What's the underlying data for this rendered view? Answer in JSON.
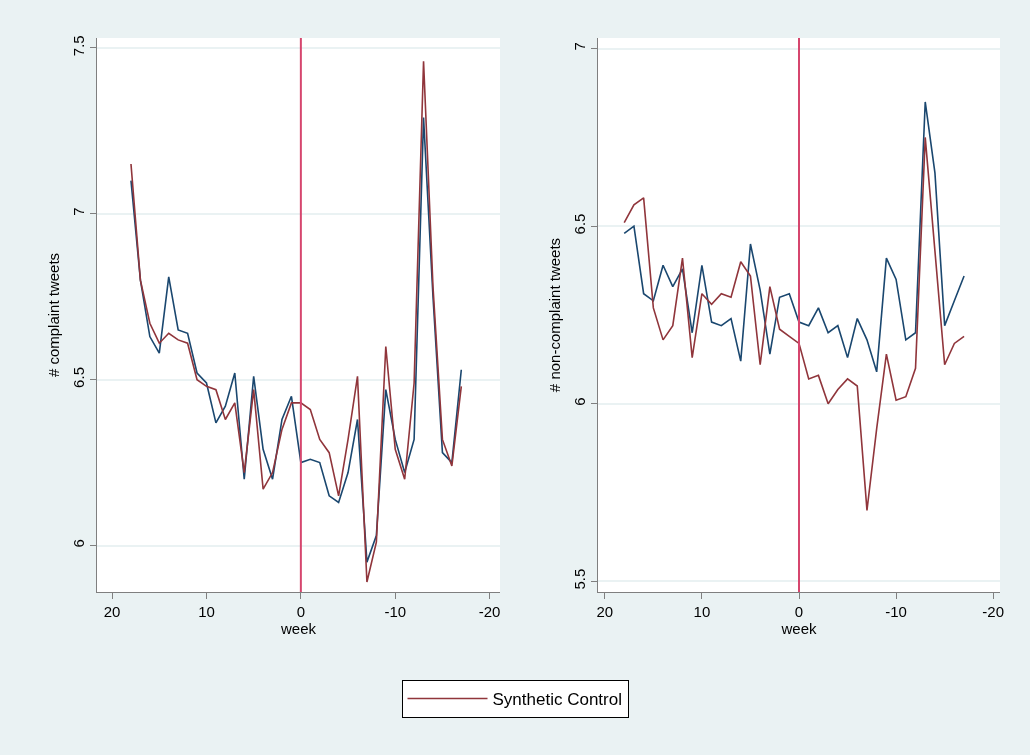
{
  "chart_data": [
    {
      "type": "line",
      "xlabel": "week",
      "ylabel": "# complaint tweets",
      "x": [
        18,
        17,
        16,
        15,
        14,
        13,
        12,
        11,
        10,
        9,
        8,
        7,
        6,
        5,
        4,
        3,
        2,
        1,
        0,
        -1,
        -2,
        -3,
        -4,
        -5,
        -6,
        -7,
        -8,
        -9,
        -10,
        -11,
        -12,
        -13,
        -14,
        -15,
        -16,
        -17
      ],
      "series": [
        {
          "color": "#1a476f",
          "values": [
            7.1,
            6.8,
            6.63,
            6.58,
            6.81,
            6.65,
            6.64,
            6.52,
            6.49,
            6.37,
            6.42,
            6.52,
            6.2,
            6.51,
            6.29,
            6.2,
            6.38,
            6.45,
            6.25,
            6.26,
            6.25,
            6.15,
            6.13,
            6.22,
            6.38,
            5.95,
            6.03,
            6.47,
            6.32,
            6.22,
            6.32,
            7.29,
            6.75,
            6.28,
            6.25,
            6.53
          ]
        },
        {
          "name": "Synthetic Control",
          "color": "#90353b",
          "values": [
            7.15,
            6.8,
            6.67,
            6.61,
            6.64,
            6.62,
            6.61,
            6.5,
            6.48,
            6.47,
            6.38,
            6.43,
            6.22,
            6.47,
            6.17,
            6.22,
            6.35,
            6.43,
            6.43,
            6.41,
            6.32,
            6.28,
            6.15,
            6.32,
            6.51,
            5.89,
            6.01,
            6.6,
            6.29,
            6.2,
            6.49,
            7.46,
            6.78,
            6.32,
            6.24,
            6.48
          ]
        }
      ],
      "xlim": [
        21.6,
        -21.1
      ],
      "xticks": [
        20,
        10,
        0,
        -10,
        -20
      ],
      "ylim": [
        5.86,
        7.53
      ],
      "yticks": [
        6,
        6.5,
        7,
        7.5
      ],
      "ref_lines": [
        {
          "axis": "x",
          "value": 0,
          "color": "#d6466e"
        }
      ],
      "grid": "y",
      "legend": "bottom"
    },
    {
      "type": "line",
      "xlabel": "week",
      "ylabel": "# non-complaint tweets",
      "x": [
        18,
        17,
        16,
        15,
        14,
        13,
        12,
        11,
        10,
        9,
        8,
        7,
        6,
        5,
        4,
        3,
        2,
        1,
        0,
        -1,
        -2,
        -3,
        -4,
        -5,
        -6,
        -7,
        -8,
        -9,
        -10,
        -11,
        -12,
        -13,
        -14,
        -15,
        -16,
        -17
      ],
      "series": [
        {
          "color": "#1a476f",
          "values": [
            6.48,
            6.5,
            6.31,
            6.29,
            6.39,
            6.33,
            6.38,
            6.2,
            6.39,
            6.23,
            6.22,
            6.24,
            6.12,
            6.45,
            6.32,
            6.14,
            6.3,
            6.31,
            6.23,
            6.22,
            6.27,
            6.2,
            6.22,
            6.13,
            6.24,
            6.18,
            6.09,
            6.41,
            6.35,
            6.18,
            6.2,
            6.85,
            6.65,
            6.22,
            6.29,
            6.36
          ]
        },
        {
          "color": "#90353b",
          "values": [
            6.51,
            6.56,
            6.58,
            6.27,
            6.18,
            6.22,
            6.41,
            6.13,
            6.31,
            6.28,
            6.31,
            6.3,
            6.4,
            6.36,
            6.11,
            6.33,
            6.21,
            6.19,
            6.17,
            6.07,
            6.08,
            6.0,
            6.04,
            6.07,
            6.05,
            5.7,
            5.93,
            6.14,
            6.01,
            6.02,
            6.1,
            6.75,
            6.43,
            6.11,
            6.17,
            6.19
          ]
        }
      ],
      "xlim": [
        20.7,
        -20.7
      ],
      "xticks": [
        20,
        10,
        0,
        -10,
        -20
      ],
      "ylim": [
        5.47,
        7.03
      ],
      "yticks": [
        5.5,
        6,
        6.5,
        7
      ],
      "ref_lines": [
        {
          "axis": "x",
          "value": 0,
          "color": "#d6466e"
        }
      ],
      "grid": "y"
    }
  ]
}
